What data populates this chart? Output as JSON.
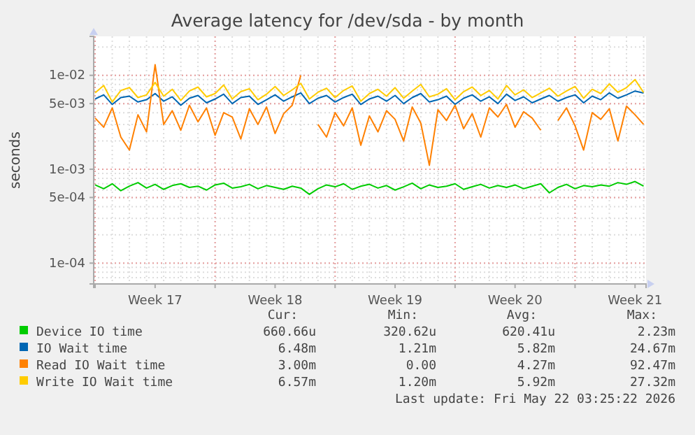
{
  "chart_data": {
    "type": "line",
    "title": "Average latency for /dev/sda - by month",
    "ylabel": "seconds",
    "log": true,
    "grid": true,
    "legend": "bottom",
    "marker": "none",
    "line_style": "solid",
    "xlim": [
      "2026-04-19T22:00",
      "2026-05-22T03:25"
    ],
    "xticks": [
      {
        "value": "2026-04-20T00:00",
        "label": null
      },
      {
        "value": "2026-04-23T12:00",
        "label": "Week 17"
      },
      {
        "value": "2026-04-27T00:00",
        "label": null
      },
      {
        "value": "2026-04-30T12:00",
        "label": "Week 18"
      },
      {
        "value": "2026-05-04T00:00",
        "label": null
      },
      {
        "value": "2026-05-07T12:00",
        "label": "Week 19"
      },
      {
        "value": "2026-05-11T00:00",
        "label": null
      },
      {
        "value": "2026-05-14T12:00",
        "label": "Week 20"
      },
      {
        "value": "2026-05-18T00:00",
        "label": null
      },
      {
        "value": "2026-05-21T12:00",
        "label": "Week 21"
      }
    ],
    "ylim": [
      6e-05,
      0.026
    ],
    "yticks": [
      {
        "value": 0.0001,
        "label": "1e-04"
      },
      {
        "value": 0.0005,
        "label": "5e-04"
      },
      {
        "value": 0.001,
        "label": "1e-03"
      },
      {
        "value": 0.005,
        "label": "5e-03"
      },
      {
        "value": 0.01,
        "label": "1e-02"
      }
    ],
    "x": [
      "2026-04-20T00:00",
      "2026-04-20T12:00",
      "2026-04-21T00:00",
      "2026-04-21T12:00",
      "2026-04-22T00:00",
      "2026-04-22T12:00",
      "2026-04-23T00:00",
      "2026-04-23T12:00",
      "2026-04-24T00:00",
      "2026-04-24T12:00",
      "2026-04-25T00:00",
      "2026-04-25T12:00",
      "2026-04-26T00:00",
      "2026-04-26T12:00",
      "2026-04-27T00:00",
      "2026-04-27T12:00",
      "2026-04-28T00:00",
      "2026-04-28T12:00",
      "2026-04-29T00:00",
      "2026-04-29T12:00",
      "2026-04-30T00:00",
      "2026-04-30T12:00",
      "2026-05-01T00:00",
      "2026-05-01T12:00",
      "2026-05-02T00:00",
      "2026-05-02T12:00",
      "2026-05-03T00:00",
      "2026-05-03T12:00",
      "2026-05-04T00:00",
      "2026-05-04T12:00",
      "2026-05-05T00:00",
      "2026-05-05T12:00",
      "2026-05-06T00:00",
      "2026-05-06T12:00",
      "2026-05-07T00:00",
      "2026-05-07T12:00",
      "2026-05-08T00:00",
      "2026-05-08T12:00",
      "2026-05-09T00:00",
      "2026-05-09T12:00",
      "2026-05-10T00:00",
      "2026-05-10T12:00",
      "2026-05-11T00:00",
      "2026-05-11T12:00",
      "2026-05-12T00:00",
      "2026-05-12T12:00",
      "2026-05-13T00:00",
      "2026-05-13T12:00",
      "2026-05-14T00:00",
      "2026-05-14T12:00",
      "2026-05-15T00:00",
      "2026-05-15T12:00",
      "2026-05-16T00:00",
      "2026-05-16T12:00",
      "2026-05-17T00:00",
      "2026-05-17T12:00",
      "2026-05-18T00:00",
      "2026-05-18T12:00",
      "2026-05-19T00:00",
      "2026-05-19T12:00",
      "2026-05-20T00:00",
      "2026-05-20T12:00",
      "2026-05-21T00:00",
      "2026-05-21T12:00",
      "2026-05-22T00:00"
    ],
    "series": [
      {
        "name": "Device IO time",
        "color": "#00cc00",
        "values": [
          0.00068,
          0.00062,
          0.0007,
          0.00059,
          0.00066,
          0.00072,
          0.00063,
          0.00069,
          0.00061,
          0.00067,
          0.0007,
          0.00064,
          0.00066,
          0.0006,
          0.00068,
          0.00071,
          0.00063,
          0.00065,
          0.00069,
          0.00062,
          0.00067,
          0.00064,
          0.00061,
          0.00066,
          0.00063,
          0.00054,
          0.00062,
          0.00068,
          0.00065,
          0.0007,
          0.00061,
          0.00066,
          0.00069,
          0.00063,
          0.00067,
          0.0006,
          0.00065,
          0.00071,
          0.00062,
          0.00068,
          0.00064,
          0.00066,
          0.0007,
          0.00061,
          0.00065,
          0.00069,
          0.00063,
          0.00067,
          0.00064,
          0.00068,
          0.00062,
          0.00066,
          0.0007,
          0.00056,
          0.00064,
          0.00069,
          0.00062,
          0.00067,
          0.00065,
          0.00068,
          0.00066,
          0.00072,
          0.00069,
          0.00074,
          0.000661
        ]
      },
      {
        "name": "IO Wait time",
        "color": "#0066b3",
        "values": [
          0.0056,
          0.0062,
          0.0049,
          0.0058,
          0.006,
          0.0052,
          0.0055,
          0.0064,
          0.0053,
          0.0059,
          0.0048,
          0.0057,
          0.0061,
          0.0051,
          0.0056,
          0.0063,
          0.005,
          0.0058,
          0.006,
          0.0049,
          0.0055,
          0.0062,
          0.0053,
          0.0059,
          0.0065,
          0.005,
          0.0057,
          0.0061,
          0.0052,
          0.0058,
          0.0063,
          0.0049,
          0.0056,
          0.006,
          0.0053,
          0.0061,
          0.005,
          0.0058,
          0.0064,
          0.0052,
          0.0055,
          0.006,
          0.0049,
          0.0057,
          0.0062,
          0.0053,
          0.0059,
          0.005,
          0.0063,
          0.0054,
          0.0059,
          0.0051,
          0.0056,
          0.0061,
          0.0053,
          0.0058,
          0.0062,
          0.0051,
          0.006,
          0.0055,
          0.0065,
          0.0057,
          0.0062,
          0.0068,
          0.00648
        ]
      },
      {
        "name": "Read IO Wait time",
        "color": "#ff8000",
        "values": [
          0.0035,
          0.0028,
          0.0045,
          0.0022,
          0.0016,
          0.0038,
          0.0025,
          0.013,
          0.003,
          0.0042,
          0.0026,
          0.0048,
          0.0032,
          0.0045,
          0.0023,
          0.004,
          0.0036,
          0.0021,
          0.0044,
          0.003,
          0.0046,
          0.0024,
          0.0039,
          0.0048,
          0.01,
          null,
          0.003,
          0.0022,
          0.004,
          0.0029,
          0.0045,
          0.0018,
          0.0037,
          0.0025,
          0.0042,
          0.0034,
          0.002,
          0.0046,
          0.0031,
          0.0011,
          0.0043,
          0.0033,
          0.0048,
          0.0027,
          0.0039,
          0.0022,
          0.0045,
          0.0036,
          0.0049,
          0.0028,
          0.0041,
          0.0035,
          0.0026,
          null,
          0.0033,
          0.0045,
          0.0029,
          0.0016,
          0.004,
          0.0034,
          0.0044,
          0.002,
          0.0047,
          0.0038,
          0.003
        ]
      },
      {
        "name": "Write IO Wait time",
        "color": "#ffcc00",
        "values": [
          0.0065,
          0.0078,
          0.0052,
          0.0069,
          0.0074,
          0.0058,
          0.0062,
          0.0084,
          0.006,
          0.0071,
          0.0054,
          0.0068,
          0.0075,
          0.0059,
          0.0064,
          0.0079,
          0.0056,
          0.0067,
          0.0072,
          0.0055,
          0.0063,
          0.0076,
          0.0061,
          0.007,
          0.0082,
          0.0056,
          0.0066,
          0.0073,
          0.0058,
          0.0069,
          0.0077,
          0.0053,
          0.0064,
          0.0071,
          0.006,
          0.0074,
          0.0057,
          0.0068,
          0.008,
          0.0059,
          0.0063,
          0.0072,
          0.0055,
          0.0067,
          0.0075,
          0.0061,
          0.0069,
          0.0056,
          0.0078,
          0.0062,
          0.007,
          0.0058,
          0.0065,
          0.0073,
          0.006,
          0.0068,
          0.0076,
          0.0057,
          0.0071,
          0.0064,
          0.0081,
          0.0066,
          0.0074,
          0.009,
          0.00657
        ]
      }
    ],
    "annotations": [
      "Cur:",
      "Min:",
      "Avg:",
      "Max:",
      "660.66u",
      "320.62u",
      "620.41u",
      "2.23m",
      "6.48m",
      "1.21m",
      "5.82m",
      "24.67m",
      "3.00m",
      "0.00",
      "4.27m",
      "92.47m",
      "6.57m",
      "1.20m",
      "5.92m",
      "27.32m",
      "Last update: Fri May 22 03:25:22 2026"
    ]
  }
}
